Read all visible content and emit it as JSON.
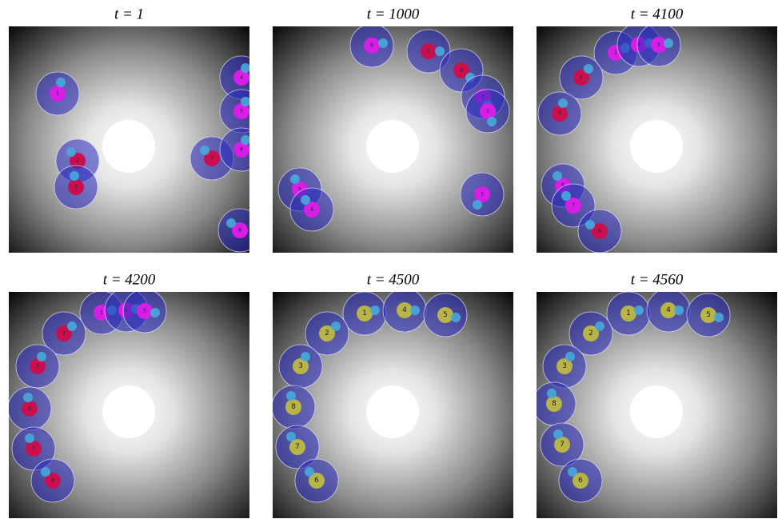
{
  "panels": [
    {
      "title": "t = 1",
      "agents": [
        "1",
        "2",
        "3",
        "7",
        "4",
        "5",
        "6",
        "8"
      ]
    },
    {
      "title": "t = 1000",
      "agents": [
        "6",
        "7",
        "8",
        "3",
        "2",
        "1",
        "5",
        "4"
      ]
    },
    {
      "title": "t = 4100",
      "agents": [
        "1",
        "4",
        "5",
        "2",
        "3",
        "8",
        "7",
        "6"
      ]
    },
    {
      "title": "t = 4200",
      "agents": [
        "1",
        "4",
        "5",
        "2",
        "3",
        "8",
        "7",
        "6"
      ]
    },
    {
      "title": "t = 4500",
      "agents": [
        "1",
        "4",
        "5",
        "2",
        "3",
        "8",
        "7",
        "6"
      ]
    },
    {
      "title": "t = 4560",
      "agents": [
        "1",
        "4",
        "5",
        "2",
        "3",
        "8",
        "7",
        "6"
      ]
    }
  ]
}
